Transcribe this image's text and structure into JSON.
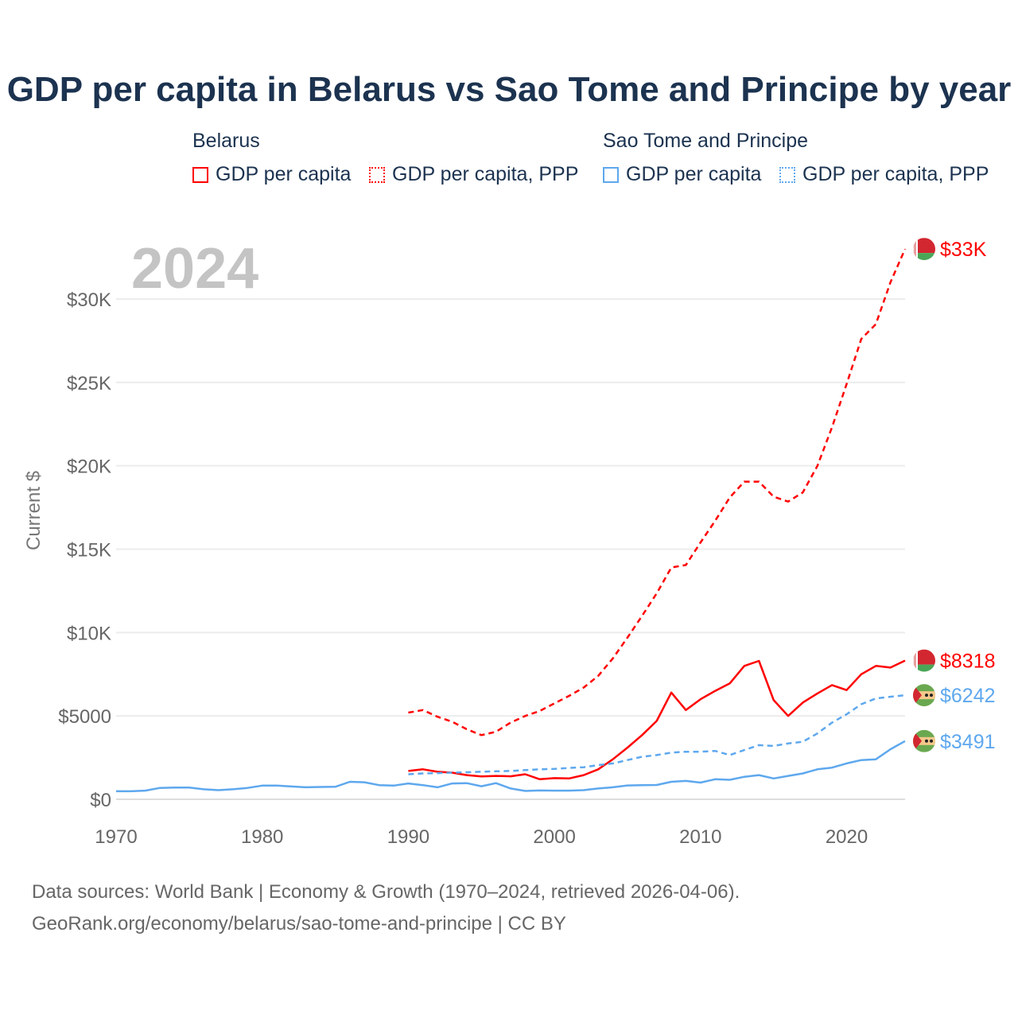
{
  "chart_data": {
    "type": "line",
    "title": "GDP per capita in Belarus vs Sao Tome and Principe by year",
    "xlabel": "",
    "ylabel": "Current $",
    "year_label": "2024",
    "xlim": [
      1970,
      2024
    ],
    "ylim": [
      0,
      34000
    ],
    "xticks": [
      1970,
      1980,
      1990,
      2000,
      2010,
      2020
    ],
    "xtick_labels": [
      "1970",
      "1980",
      "1990",
      "2000",
      "2010",
      "2020"
    ],
    "yticks": [
      0,
      5000,
      10000,
      15000,
      20000,
      25000,
      30000
    ],
    "ytick_labels": [
      "$0",
      "$5000",
      "$10K",
      "$15K",
      "$20K",
      "$25K",
      "$30K"
    ],
    "grid": true,
    "legend": {
      "placement": "top",
      "groups": [
        {
          "name": "Belarus",
          "items": [
            "GDP per capita",
            "GDP per capita, PPP"
          ]
        },
        {
          "name": "Sao Tome and Principe",
          "items": [
            "GDP per capita",
            "GDP per capita, PPP"
          ]
        }
      ]
    },
    "colors": {
      "belarus": "#ff0000",
      "sao_tome": "#5ea8ee"
    },
    "series": [
      {
        "name": "Belarus GDP per capita",
        "country": "belarus",
        "dashed": false,
        "end_label": "$8318",
        "start": 1990,
        "values": [
          1700,
          1800,
          1650,
          1600,
          1450,
          1370,
          1400,
          1380,
          1500,
          1200,
          1270,
          1250,
          1450,
          1800,
          2400,
          3100,
          3850,
          4700,
          6400,
          5350,
          6000,
          6500,
          6950,
          8000,
          8300,
          5950,
          5000,
          5800,
          6350,
          6850,
          6550,
          7500,
          8000,
          7900,
          8318
        ]
      },
      {
        "name": "Belarus GDP per capita, PPP",
        "country": "belarus",
        "dashed": true,
        "end_label": "$33K",
        "start": 1990,
        "values": [
          5200,
          5350,
          4950,
          4650,
          4200,
          3850,
          4050,
          4600,
          5000,
          5300,
          5750,
          6200,
          6700,
          7400,
          8450,
          9700,
          11000,
          12350,
          13900,
          14050,
          15400,
          16700,
          18100,
          19050,
          19050,
          18150,
          17850,
          18400,
          20000,
          22300,
          24900,
          27600,
          28500,
          31000,
          33000
        ]
      },
      {
        "name": "Sao Tome and Principe GDP per capita",
        "country": "sao_tome",
        "dashed": false,
        "end_label": "$3491",
        "start": 1970,
        "values": [
          480,
          480,
          520,
          680,
          700,
          700,
          600,
          550,
          600,
          680,
          820,
          820,
          770,
          720,
          740,
          750,
          1050,
          1020,
          850,
          820,
          950,
          850,
          720,
          950,
          970,
          780,
          970,
          650,
          500,
          530,
          520,
          520,
          550,
          650,
          720,
          830,
          850,
          860,
          1050,
          1100,
          1000,
          1200,
          1170,
          1350,
          1450,
          1250,
          1400,
          1550,
          1800,
          1900,
          2150,
          2350,
          2400,
          3000,
          3491
        ]
      },
      {
        "name": "Sao Tome and Principe GDP per capita, PPP",
        "country": "sao_tome",
        "dashed": true,
        "end_label": "$6242",
        "start": 1990,
        "values": [
          1500,
          1550,
          1570,
          1600,
          1620,
          1650,
          1680,
          1700,
          1750,
          1800,
          1820,
          1880,
          1920,
          2050,
          2150,
          2350,
          2550,
          2650,
          2800,
          2850,
          2850,
          2900,
          2650,
          2950,
          3250,
          3200,
          3350,
          3450,
          3950,
          4600,
          5100,
          5700,
          6050,
          6150,
          6242
        ]
      }
    ]
  },
  "source": {
    "line1": "Data sources: World Bank | Economy & Growth (1970–2024, retrieved 2026-04-06).",
    "line2": "GeoRank.org/economy/belarus/sao-tome-and-principe | CC BY"
  }
}
